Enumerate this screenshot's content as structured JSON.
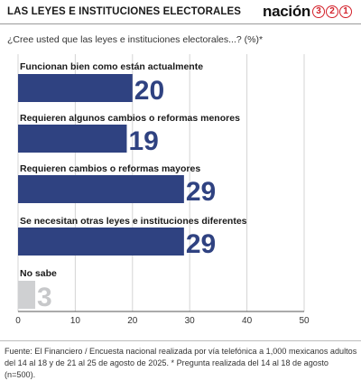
{
  "header": {
    "title": "LAS LEYES E INSTITUCIONES ELECTORALES",
    "brand_word": "nación",
    "brand_digits": [
      "3",
      "2",
      "1"
    ]
  },
  "question": "¿Cree usted que las leyes e instituciones electorales...?   (%)*",
  "source": "Fuente: El Financiero / Encuesta nacional realizada por vía telefónica a 1,000 mexicanos adultos del 14 al 18 y de 21 al 25 de agosto de 2025. * Pregunta realizada del 14 al 18 de agosto (n=500).",
  "colors": {
    "bar": "#2f4281",
    "bar_muted": "#cfd0d2",
    "label_muted": "#c7c8ca",
    "text": "#1a1a1a",
    "grid": "#d4d4d4",
    "brand_accent": "#d3202a"
  },
  "chart_data": {
    "type": "bar",
    "orientation": "horizontal",
    "categories": [
      "Funcionan bien como están actualmente",
      "Requieren algunos cambios o reformas menores",
      "Requieren cambios o reformas mayores",
      "Se necesitan otras leyes e instituciones diferentes",
      "No sabe"
    ],
    "values": [
      20,
      19,
      29,
      29,
      3
    ],
    "muted": [
      false,
      false,
      false,
      false,
      true
    ],
    "xlim": [
      0,
      50
    ],
    "xticks": [
      0,
      10,
      20,
      30,
      40,
      50
    ],
    "grid": true,
    "title": "",
    "xlabel": "",
    "ylabel": ""
  }
}
